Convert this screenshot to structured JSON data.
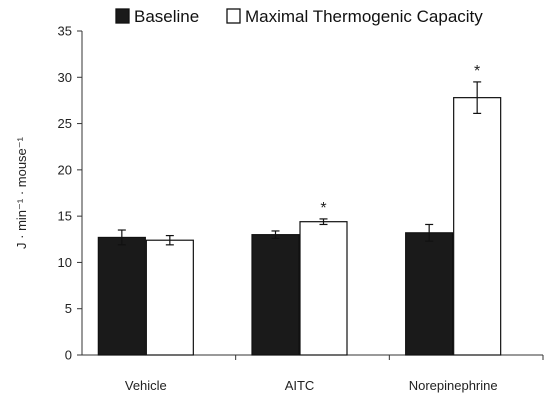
{
  "chart_data": {
    "type": "bar",
    "categories": [
      "Vehicle",
      "AITC",
      "Norepinephrine"
    ],
    "series": [
      {
        "name": "Baseline",
        "color": "#1a1a1a",
        "values": [
          12.7,
          13.0,
          13.2
        ],
        "errors": [
          0.8,
          0.4,
          0.9
        ],
        "annotations": [
          "",
          "",
          ""
        ]
      },
      {
        "name": "Maximal Thermogenic Capacity",
        "color": "#ffffff",
        "values": [
          12.4,
          14.4,
          27.8
        ],
        "errors": [
          0.5,
          0.3,
          1.7
        ],
        "annotations": [
          "",
          "*",
          "*"
        ]
      }
    ],
    "ylabel": "J · min⁻¹ · mouse⁻¹",
    "xlabel": "",
    "ylim": [
      0,
      35
    ],
    "yticks": [
      0,
      5,
      10,
      15,
      20,
      25,
      30,
      35
    ],
    "grid": false,
    "legend_position": "top"
  }
}
